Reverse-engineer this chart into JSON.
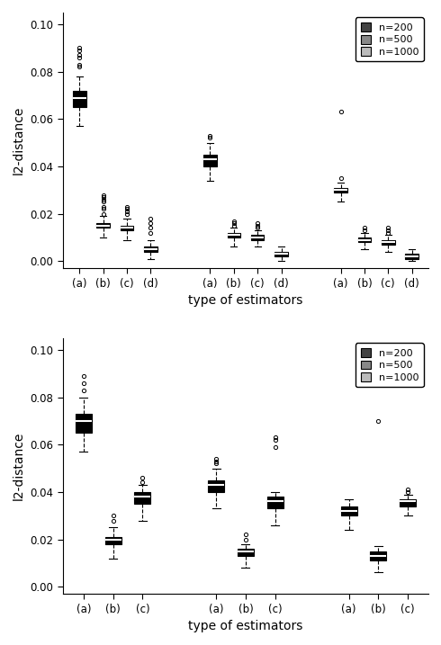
{
  "top_plot": {
    "ylabel": "l2-distance",
    "xlabel": "type of estimators",
    "ylim": [
      -0.003,
      0.105
    ],
    "yticks": [
      0.0,
      0.02,
      0.04,
      0.06,
      0.08,
      0.1
    ],
    "colors": [
      "#444444",
      "#888888",
      "#bbbbbb"
    ],
    "group_labels": [
      [
        "(a)",
        "(b)",
        "(c)",
        "(d)"
      ],
      [
        "(a)",
        "(b)",
        "(c)",
        "(d)"
      ],
      [
        "(a)",
        "(b)",
        "(c)",
        "(d)"
      ]
    ],
    "boxes": [
      {
        "q1": 0.065,
        "median": 0.069,
        "q3": 0.072,
        "whislo": 0.057,
        "whishi": 0.078,
        "fliers": [
          0.082,
          0.083,
          0.086,
          0.087,
          0.089,
          0.09
        ],
        "color_idx": 0
      },
      {
        "q1": 0.014,
        "median": 0.015,
        "q3": 0.016,
        "whislo": 0.01,
        "whishi": 0.019,
        "fliers": [
          0.02,
          0.022,
          0.023,
          0.025,
          0.026,
          0.027,
          0.028
        ],
        "color_idx": 0
      },
      {
        "q1": 0.013,
        "median": 0.014,
        "q3": 0.015,
        "whislo": 0.009,
        "whishi": 0.018,
        "fliers": [
          0.02,
          0.021,
          0.022,
          0.023
        ],
        "color_idx": 0
      },
      {
        "q1": 0.004,
        "median": 0.005,
        "q3": 0.006,
        "whislo": 0.001,
        "whishi": 0.009,
        "fliers": [
          0.012,
          0.014,
          0.016,
          0.018
        ],
        "color_idx": 0
      },
      {
        "q1": 0.04,
        "median": 0.043,
        "q3": 0.045,
        "whislo": 0.034,
        "whishi": 0.05,
        "fliers": [
          0.052,
          0.053
        ],
        "color_idx": 1
      },
      {
        "q1": 0.01,
        "median": 0.011,
        "q3": 0.012,
        "whislo": 0.006,
        "whishi": 0.014,
        "fliers": [
          0.015,
          0.016,
          0.017
        ],
        "color_idx": 1
      },
      {
        "q1": 0.009,
        "median": 0.01,
        "q3": 0.011,
        "whislo": 0.006,
        "whishi": 0.013,
        "fliers": [
          0.014,
          0.015,
          0.016
        ],
        "color_idx": 1
      },
      {
        "q1": 0.002,
        "median": 0.003,
        "q3": 0.004,
        "whislo": 0.0,
        "whishi": 0.006,
        "fliers": [],
        "color_idx": 1
      },
      {
        "q1": 0.029,
        "median": 0.03,
        "q3": 0.031,
        "whislo": 0.025,
        "whishi": 0.033,
        "fliers": [
          0.035,
          0.063
        ],
        "color_idx": 2
      },
      {
        "q1": 0.008,
        "median": 0.009,
        "q3": 0.01,
        "whislo": 0.005,
        "whishi": 0.012,
        "fliers": [
          0.013,
          0.014
        ],
        "color_idx": 2
      },
      {
        "q1": 0.007,
        "median": 0.008,
        "q3": 0.009,
        "whislo": 0.004,
        "whishi": 0.011,
        "fliers": [
          0.012,
          0.013,
          0.014
        ],
        "color_idx": 2
      },
      {
        "q1": 0.001,
        "median": 0.002,
        "q3": 0.003,
        "whislo": 0.0,
        "whishi": 0.005,
        "fliers": [],
        "color_idx": 2
      }
    ]
  },
  "bottom_plot": {
    "ylabel": "l2-distance",
    "xlabel": "type of estimators",
    "ylim": [
      -0.003,
      0.105
    ],
    "yticks": [
      0.0,
      0.02,
      0.04,
      0.06,
      0.08,
      0.1
    ],
    "colors": [
      "#444444",
      "#888888",
      "#bbbbbb"
    ],
    "group_labels": [
      [
        "(a)",
        "(b)",
        "(c)"
      ],
      [
        "(a)",
        "(b)",
        "(c)"
      ],
      [
        "(a)",
        "(b)",
        "(c)"
      ]
    ],
    "boxes": [
      {
        "q1": 0.065,
        "median": 0.07,
        "q3": 0.073,
        "whislo": 0.057,
        "whishi": 0.08,
        "fliers": [
          0.083,
          0.086,
          0.089
        ],
        "color_idx": 0
      },
      {
        "q1": 0.018,
        "median": 0.02,
        "q3": 0.021,
        "whislo": 0.012,
        "whishi": 0.025,
        "fliers": [
          0.028,
          0.03
        ],
        "color_idx": 0
      },
      {
        "q1": 0.035,
        "median": 0.038,
        "q3": 0.04,
        "whislo": 0.028,
        "whishi": 0.043,
        "fliers": [
          0.044,
          0.046
        ],
        "color_idx": 0
      },
      {
        "q1": 0.04,
        "median": 0.043,
        "q3": 0.045,
        "whislo": 0.033,
        "whishi": 0.05,
        "fliers": [
          0.052,
          0.053,
          0.054
        ],
        "color_idx": 1
      },
      {
        "q1": 0.013,
        "median": 0.015,
        "q3": 0.016,
        "whislo": 0.008,
        "whishi": 0.018,
        "fliers": [
          0.02,
          0.022
        ],
        "color_idx": 1
      },
      {
        "q1": 0.033,
        "median": 0.036,
        "q3": 0.038,
        "whislo": 0.026,
        "whishi": 0.04,
        "fliers": [
          0.059,
          0.062,
          0.063
        ],
        "color_idx": 1
      },
      {
        "q1": 0.03,
        "median": 0.032,
        "q3": 0.034,
        "whislo": 0.024,
        "whishi": 0.037,
        "fliers": [],
        "color_idx": 2
      },
      {
        "q1": 0.011,
        "median": 0.013,
        "q3": 0.015,
        "whislo": 0.006,
        "whishi": 0.017,
        "fliers": [
          0.07
        ],
        "color_idx": 2
      },
      {
        "q1": 0.034,
        "median": 0.036,
        "q3": 0.037,
        "whislo": 0.03,
        "whishi": 0.039,
        "fliers": [
          0.04,
          0.041
        ],
        "color_idx": 2
      }
    ]
  },
  "legend_labels": [
    "n=200",
    "n=500",
    "n=1000"
  ],
  "legend_colors": [
    "#444444",
    "#888888",
    "#bbbbbb"
  ]
}
